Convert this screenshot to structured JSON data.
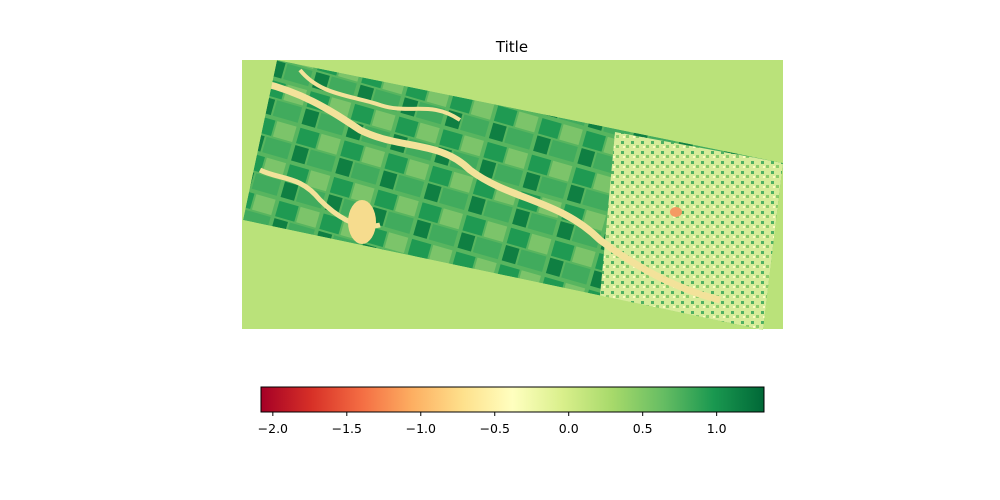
{
  "chart_data": {
    "type": "heatmap",
    "title": "Title",
    "xlabel": "",
    "ylabel": "",
    "colormap": "RdYlGn",
    "background_value": 0.5,
    "colorbar": {
      "orientation": "horizontal",
      "vmin": -2.08,
      "vmax": 1.32,
      "ticks": [
        -2.0,
        -1.5,
        -1.0,
        -0.5,
        0.0,
        0.5,
        1.0
      ],
      "tick_labels": [
        "−2.0",
        "−1.5",
        "−1.0",
        "−0.5",
        "0.0",
        "0.5",
        "1.0"
      ],
      "stops": [
        "#a50026",
        "#d73027",
        "#f46d43",
        "#fdae61",
        "#fee08b",
        "#ffffbf",
        "#d9ef8b",
        "#a6d96a",
        "#66bd63",
        "#1a9850",
        "#006837"
      ]
    }
  }
}
